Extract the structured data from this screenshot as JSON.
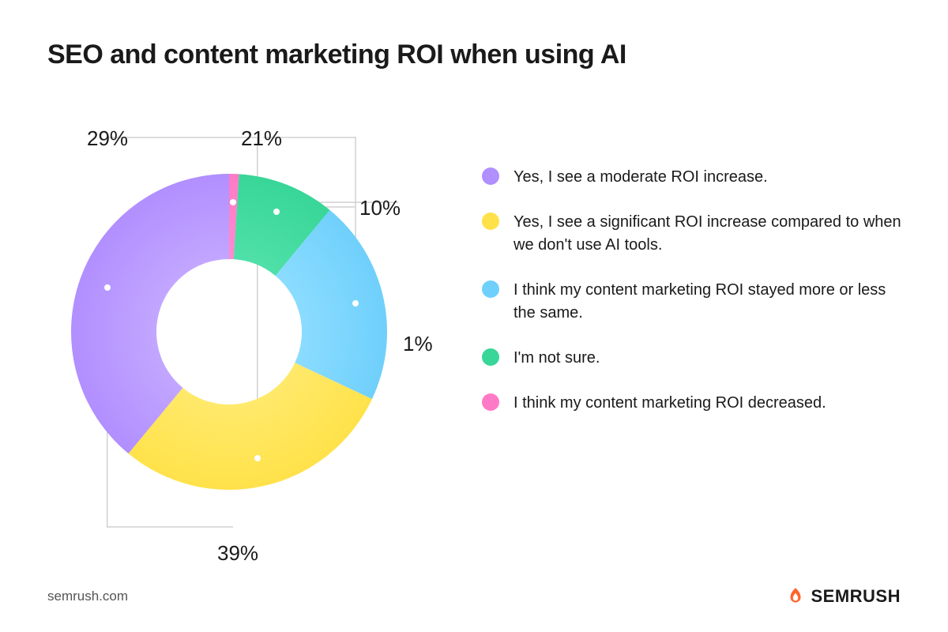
{
  "title": "SEO and content marketing ROI when using AI",
  "chart": {
    "type": "donut",
    "start_angle_deg": 90,
    "direction": "clockwise",
    "inner_radius_pct": 46,
    "outer_radius_pct": 100,
    "background_color": "#ffffff",
    "slices": [
      {
        "key": "decreased",
        "value": 1,
        "label": "1%",
        "color_inner": "#ff8ad0",
        "color_outer": "#ff7ac6"
      },
      {
        "key": "not_sure",
        "value": 10,
        "label": "10%",
        "color_inner": "#4fe0a8",
        "color_outer": "#38d698"
      },
      {
        "key": "same",
        "value": 21,
        "label": "21%",
        "color_inner": "#8bdcff",
        "color_outer": "#6fd0fb"
      },
      {
        "key": "significant",
        "value": 29,
        "label": "29%",
        "color_inner": "#ffe96b",
        "color_outer": "#ffe24a"
      },
      {
        "key": "moderate",
        "value": 39,
        "label": "39%",
        "color_inner": "#c2a6ff",
        "color_outer": "#b18fff"
      }
    ],
    "callout_style": {
      "line_color": "#d0d0d0",
      "line_width": 1.5,
      "dot_color": "#ffffff",
      "dot_radius": 4,
      "label_fontsize": 26,
      "label_color": "#1a1a1a"
    }
  },
  "legend": {
    "swatch_shape": "circle",
    "swatch_size": 22,
    "text_fontsize": 20,
    "text_color": "#1a1a1a",
    "items": [
      {
        "key": "moderate",
        "color": "#b18fff",
        "text": "Yes, I see a moderate ROI increase."
      },
      {
        "key": "significant",
        "color": "#ffe24a",
        "text": "Yes, I see a significant ROI increase compared to when we don't use AI tools."
      },
      {
        "key": "same",
        "color": "#6fd0fb",
        "text": "I think my content marketing ROI stayed more or less the same."
      },
      {
        "key": "not_sure",
        "color": "#38d698",
        "text": "I'm not sure."
      },
      {
        "key": "decreased",
        "color": "#ff7ac6",
        "text": "I think my content marketing ROI decreased."
      }
    ]
  },
  "footer": {
    "url": "semrush.com",
    "brand_name": "SEMRUSH",
    "brand_accent": "#ff642d"
  },
  "typography": {
    "title_fontsize": 34,
    "title_weight": 700,
    "title_color": "#1a1a1a"
  }
}
